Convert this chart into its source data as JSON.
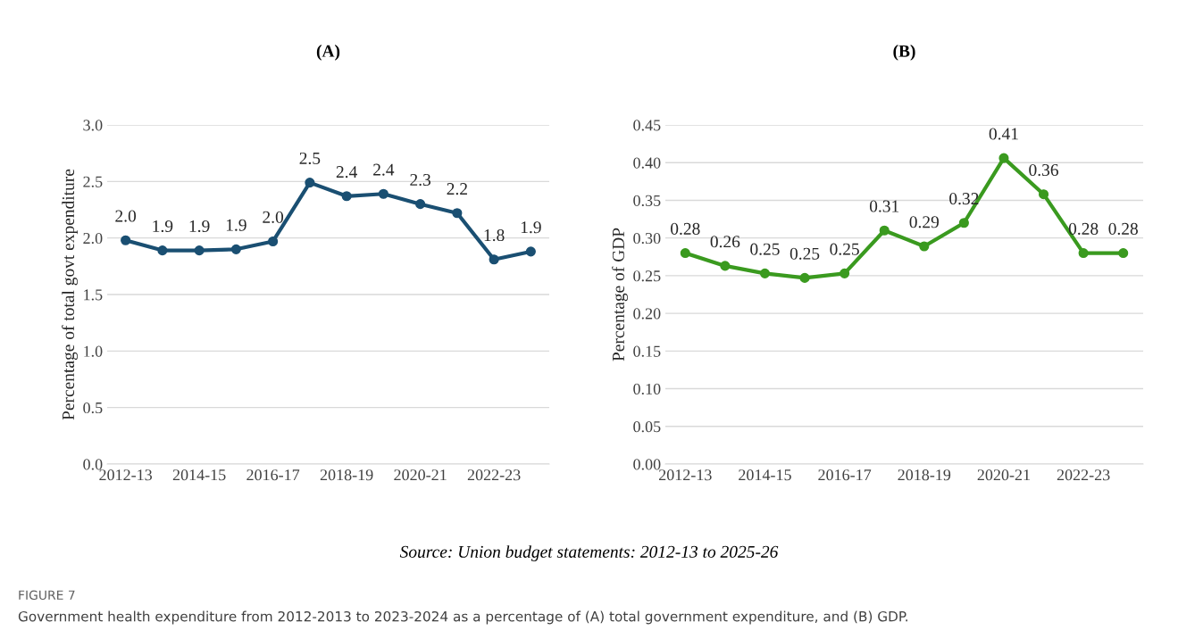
{
  "chart_data": [
    {
      "type": "line",
      "title": "(A)",
      "ylabel": "Percentage of total govt expenditure",
      "categories": [
        "2012-13",
        null,
        "2014-15",
        null,
        "2016-17",
        null,
        "2018-19",
        null,
        "2020-21",
        null,
        "2022-23",
        null
      ],
      "values": [
        1.98,
        1.89,
        1.89,
        1.9,
        1.97,
        2.49,
        2.37,
        2.39,
        2.3,
        2.22,
        1.81,
        1.88
      ],
      "value_labels": [
        "2.0",
        "1.9",
        "1.9",
        "1.9",
        "2.0",
        "2.5",
        "2.4",
        "2.4",
        "2.3",
        "2.2",
        "1.8",
        "1.9"
      ],
      "color": "#1a4f72",
      "ylim": [
        0,
        3
      ],
      "yticks": [
        {
          "value": 0,
          "label": "0.0"
        },
        {
          "value": 0.5,
          "label": "0.5"
        },
        {
          "value": 1,
          "label": "1.0"
        },
        {
          "value": 1.5,
          "label": "1.5"
        },
        {
          "value": 2,
          "label": "2.0"
        },
        {
          "value": 2.5,
          "label": "2.5"
        },
        {
          "value": 3,
          "label": "3.0"
        }
      ],
      "grid": "y",
      "marker": "circle",
      "line_style": "solid"
    },
    {
      "type": "line",
      "title": "(B)",
      "ylabel": "Percentage of GDP",
      "categories": [
        "2012-13",
        null,
        "2014-15",
        null,
        "2016-17",
        null,
        "2018-19",
        null,
        "2020-21",
        null,
        "2022-23",
        null
      ],
      "values": [
        0.28,
        0.263,
        0.253,
        0.247,
        0.253,
        0.31,
        0.289,
        0.32,
        0.406,
        0.358,
        0.28,
        0.28
      ],
      "value_labels": [
        "0.28",
        "0.26",
        "0.25",
        "0.25",
        "0.25",
        "0.31",
        "0.29",
        "0.32",
        "0.41",
        "0.36",
        "0.28",
        "0.28"
      ],
      "color": "#3a9a1f",
      "ylim": [
        0,
        0.45
      ],
      "yticks": [
        {
          "value": 0,
          "label": "0.00"
        },
        {
          "value": 0.05,
          "label": "0.05"
        },
        {
          "value": 0.1,
          "label": "0.10"
        },
        {
          "value": 0.15,
          "label": "0.15"
        },
        {
          "value": 0.2,
          "label": "0.20"
        },
        {
          "value": 0.25,
          "label": "0.25"
        },
        {
          "value": 0.3,
          "label": "0.30"
        },
        {
          "value": 0.35,
          "label": "0.35"
        },
        {
          "value": 0.4,
          "label": "0.40"
        },
        {
          "value": 0.45,
          "label": "0.45"
        }
      ],
      "grid": "y",
      "marker": "circle",
      "line_style": "solid",
      "annotations": [
        "Source: Union budget statements: 2012-13 to 2025-26",
        "FIGURE 7",
        "Government health expenditure from 2012-2013 to 2023-2024 as a percentage of (A) total government expenditure, and (B) GDP."
      ]
    }
  ]
}
